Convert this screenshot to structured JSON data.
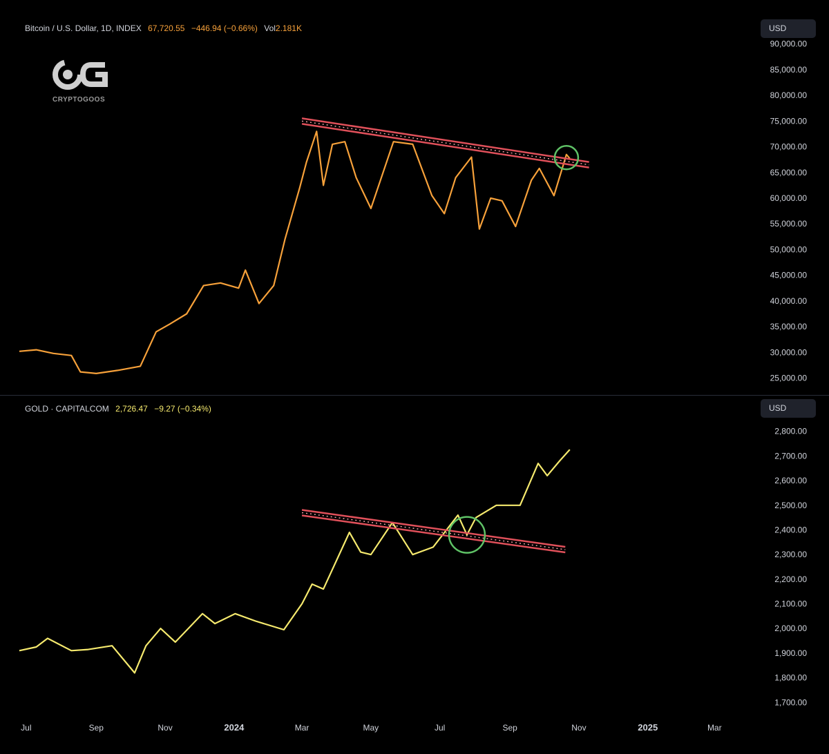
{
  "watermark": {
    "text": "CRYPTOGOOS",
    "logo_icon": "cg-logo-icon"
  },
  "panels": [
    {
      "legend": {
        "symbol": "Bitcoin / U.S. Dollar, 1D, INDEX",
        "price": "67,720.55",
        "change": "−446.94 (−0.66%)",
        "vol_label": "Vol",
        "vol_value": "2.181K"
      },
      "currency_label": "USD",
      "colors": {
        "line": "#f7a13a",
        "trendline": "#e0505a",
        "highlight": "#5fc266"
      }
    },
    {
      "legend": {
        "symbol": "GOLD · CAPITALCOM",
        "price": "2,726.47",
        "change": "−9.27 (−0.34%)"
      },
      "currency_label": "USD",
      "colors": {
        "line": "#f6ea6e",
        "trendline": "#e0505a",
        "highlight": "#5fc266"
      }
    }
  ],
  "chart_data": [
    {
      "type": "line",
      "title": "Bitcoin / U.S. Dollar, 1D, INDEX",
      "series": [
        {
          "name": "Bitcoin / U.S. Dollar",
          "x": [
            "2023-06-25",
            "2023-07-10",
            "2023-07-25",
            "2023-08-10",
            "2023-08-18",
            "2023-09-01",
            "2023-09-20",
            "2023-10-10",
            "2023-10-24",
            "2023-11-05",
            "2023-11-20",
            "2023-12-05",
            "2023-12-20",
            "2024-01-05",
            "2024-01-11",
            "2024-01-23",
            "2024-02-05",
            "2024-02-15",
            "2024-02-28",
            "2024-03-05",
            "2024-03-14",
            "2024-03-20",
            "2024-03-28",
            "2024-04-08",
            "2024-04-18",
            "2024-05-01",
            "2024-05-21",
            "2024-06-07",
            "2024-06-24",
            "2024-07-05",
            "2024-07-15",
            "2024-07-29",
            "2024-08-05",
            "2024-08-15",
            "2024-08-25",
            "2024-09-06",
            "2024-09-20",
            "2024-09-27",
            "2024-10-10",
            "2024-10-21",
            "2024-10-24"
          ],
          "values": [
            30200,
            30500,
            29800,
            29400,
            26200,
            25900,
            26500,
            27300,
            34000,
            35500,
            37500,
            43000,
            43500,
            42500,
            46000,
            39500,
            43000,
            52000,
            62000,
            67000,
            73000,
            62500,
            70500,
            71000,
            64000,
            58000,
            71000,
            70500,
            60500,
            57000,
            64000,
            68000,
            54000,
            60000,
            59500,
            54500,
            63500,
            65800,
            60500,
            68500,
            67720
          ]
        }
      ],
      "xlabel": "",
      "ylabel": "",
      "ylim": [
        24000,
        90500
      ],
      "y_ticks": [
        "90,000.00",
        "85,000.00",
        "80,000.00",
        "75,000.00",
        "70,000.00",
        "65,000.00",
        "60,000.00",
        "55,000.00",
        "50,000.00",
        "45,000.00",
        "40,000.00",
        "35,000.00",
        "30,000.00",
        "25,000.00"
      ],
      "trendline": {
        "x": [
          "2024-03-01",
          "2024-11-10"
        ],
        "values": [
          75000,
          66500
        ]
      },
      "highlight": {
        "x": "2024-10-21",
        "value": 67900
      }
    },
    {
      "type": "line",
      "title": "GOLD · CAPITALCOM",
      "series": [
        {
          "name": "GOLD · CAPITALCOM",
          "x": [
            "2023-06-25",
            "2023-07-10",
            "2023-07-20",
            "2023-08-10",
            "2023-08-25",
            "2023-09-15",
            "2023-10-05",
            "2023-10-15",
            "2023-10-28",
            "2023-11-10",
            "2023-12-04",
            "2023-12-15",
            "2024-01-02",
            "2024-01-20",
            "2024-02-14",
            "2024-03-01",
            "2024-03-10",
            "2024-03-20",
            "2024-04-12",
            "2024-04-22",
            "2024-05-01",
            "2024-05-20",
            "2024-06-07",
            "2024-06-25",
            "2024-07-17",
            "2024-07-25",
            "2024-08-02",
            "2024-08-20",
            "2024-09-10",
            "2024-09-26",
            "2024-10-04",
            "2024-10-15",
            "2024-10-24"
          ],
          "values": [
            1910,
            1925,
            1960,
            1910,
            1915,
            1930,
            1820,
            1930,
            2000,
            1945,
            2060,
            2020,
            2060,
            2030,
            1995,
            2100,
            2180,
            2160,
            2390,
            2310,
            2300,
            2430,
            2300,
            2330,
            2460,
            2380,
            2450,
            2500,
            2500,
            2670,
            2620,
            2680,
            2726
          ]
        }
      ],
      "xlabel": "",
      "ylabel": "",
      "ylim": [
        1670,
        2830
      ],
      "y_ticks": [
        "2,800.00",
        "2,700.00",
        "2,600.00",
        "2,500.00",
        "2,400.00",
        "2,300.00",
        "2,200.00",
        "2,100.00",
        "2,000.00",
        "1,900.00",
        "1,800.00",
        "1,700.00"
      ],
      "trendline": {
        "x": [
          "2024-03-01",
          "2024-10-20"
        ],
        "values": [
          2470,
          2320
        ]
      },
      "highlight": {
        "x": "2024-07-25",
        "value": 2380
      }
    }
  ],
  "x_axis": {
    "range": [
      "2023-06-25",
      "2025-04-01"
    ],
    "ticks": [
      {
        "label": "Jul",
        "date": "2023-07-01",
        "bold": false
      },
      {
        "label": "Sep",
        "date": "2023-09-01",
        "bold": false
      },
      {
        "label": "Nov",
        "date": "2023-11-01",
        "bold": false
      },
      {
        "label": "2024",
        "date": "2024-01-01",
        "bold": true
      },
      {
        "label": "Mar",
        "date": "2024-03-01",
        "bold": false
      },
      {
        "label": "May",
        "date": "2024-05-01",
        "bold": false
      },
      {
        "label": "Jul",
        "date": "2024-07-01",
        "bold": false
      },
      {
        "label": "Sep",
        "date": "2024-09-01",
        "bold": false
      },
      {
        "label": "Nov",
        "date": "2024-11-01",
        "bold": false
      },
      {
        "label": "2025",
        "date": "2025-01-01",
        "bold": true
      },
      {
        "label": "Mar",
        "date": "2025-03-01",
        "bold": false
      }
    ]
  }
}
